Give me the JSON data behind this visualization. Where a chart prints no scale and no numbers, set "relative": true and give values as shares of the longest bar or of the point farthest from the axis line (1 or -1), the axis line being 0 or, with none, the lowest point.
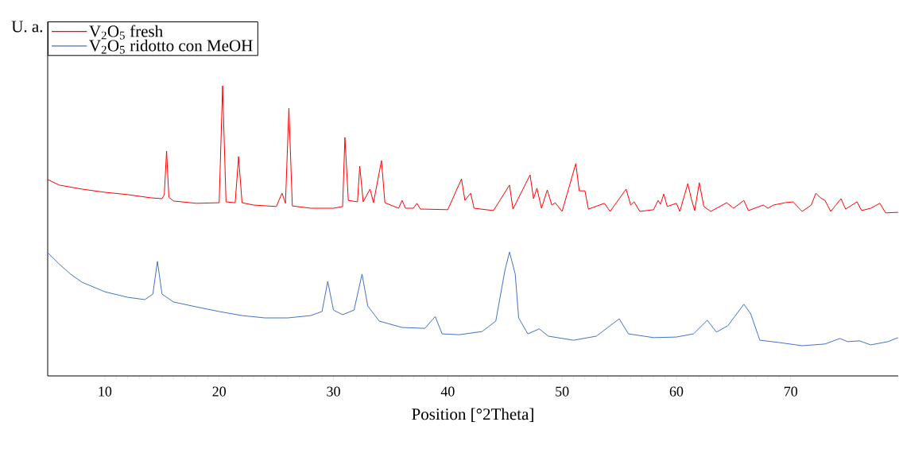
{
  "chart_data": {
    "type": "line",
    "xlabel": "Position [°2Theta]",
    "ylabel": "U. a.",
    "relative": true,
    "legend": "top left",
    "xlim": [
      5,
      79.4
    ],
    "xticks": [
      10,
      20,
      30,
      40,
      50,
      60,
      70
    ],
    "series": [
      {
        "name": "V$_{2}$O$_{5}$ fresh",
        "color": "#ff0000",
        "x": [
          5,
          6,
          8,
          10,
          12,
          14,
          15.0,
          15.2,
          15.4,
          15.6,
          16,
          18,
          20.0,
          20.3,
          20.6,
          21.4,
          21.7,
          22.0,
          23,
          25,
          25.5,
          25.8,
          26.1,
          26.4,
          28,
          30,
          30.8,
          31.0,
          31.3,
          32.1,
          32.3,
          32.6,
          33.2,
          33.5,
          34.2,
          34.5,
          35.7,
          36.0,
          36.3,
          37.0,
          37.3,
          37.6,
          38,
          40,
          41.2,
          41.5,
          42.0,
          42.3,
          44,
          45.4,
          45.7,
          47.2,
          47.5,
          47.8,
          48.2,
          48.7,
          49.1,
          49.4,
          50,
          51.2,
          51.5,
          52.0,
          52.3,
          53.7,
          54.2,
          55.6,
          56.0,
          56.3,
          56.8,
          58,
          58.4,
          58.6,
          58.9,
          59.2,
          60.0,
          60.3,
          61.0,
          61.3,
          61.6,
          62.0,
          62.4,
          63,
          64.4,
          65,
          65.9,
          66.3,
          67.6,
          68,
          68.5,
          69.5,
          70.2,
          71,
          71.8,
          72.2,
          72.6,
          73.0,
          73.5,
          74.4,
          74.8,
          75.8,
          76.2,
          77,
          77.8,
          78.3,
          79.4
        ],
        "values": [
          0.677,
          0.658,
          0.644,
          0.633,
          0.625,
          0.614,
          0.611,
          0.625,
          0.775,
          0.616,
          0.603,
          0.595,
          0.597,
          1,
          0.6,
          0.597,
          0.756,
          0.597,
          0.589,
          0.584,
          0.63,
          0.595,
          0.923,
          0.586,
          0.578,
          0.578,
          0.584,
          0.822,
          0.605,
          0.6,
          0.723,
          0.6,
          0.644,
          0.597,
          0.742,
          0.597,
          0.578,
          0.605,
          0.578,
          0.578,
          0.595,
          0.575,
          0.575,
          0.573,
          0.679,
          0.605,
          0.63,
          0.578,
          0.57,
          0.658,
          0.575,
          0.693,
          0.611,
          0.647,
          0.578,
          0.641,
          0.589,
          0.597,
          0.567,
          0.732,
          0.638,
          0.638,
          0.575,
          0.595,
          0.567,
          0.644,
          0.589,
          0.6,
          0.567,
          0.573,
          0.605,
          0.592,
          0.627,
          0.584,
          0.595,
          0.567,
          0.663,
          0.611,
          0.57,
          0.666,
          0.584,
          0.567,
          0.597,
          0.578,
          0.605,
          0.57,
          0.589,
          0.578,
          0.589,
          0.597,
          0.6,
          0.567,
          0.589,
          0.63,
          0.614,
          0.605,
          0.567,
          0.611,
          0.575,
          0.6,
          0.57,
          0.578,
          0.595,
          0.562,
          0.564
        ]
      },
      {
        "name": "V$_{2}$O$_{5}$ ridotto con MeOH",
        "color": "#4472c4",
        "x": [
          5,
          6,
          7,
          8,
          10,
          12,
          13.5,
          14.2,
          14.6,
          15.0,
          16,
          18,
          20,
          22,
          24,
          26,
          28,
          29.0,
          29.5,
          30.0,
          30.8,
          31.8,
          32.5,
          33.0,
          34,
          36,
          38,
          38.9,
          39.5,
          41,
          43,
          44.2,
          45.0,
          45.4,
          45.9,
          46.2,
          47,
          48,
          48.8,
          51,
          53,
          55.0,
          55.8,
          58,
          60,
          61.5,
          62.7,
          63.5,
          64.5,
          65.9,
          66.5,
          67.3,
          69,
          71,
          73,
          74.3,
          75,
          76,
          77,
          78.5,
          79.4
        ],
        "values": [
          0.425,
          0.386,
          0.351,
          0.323,
          0.29,
          0.271,
          0.263,
          0.282,
          0.395,
          0.282,
          0.255,
          0.238,
          0.222,
          0.208,
          0.2,
          0.2,
          0.208,
          0.222,
          0.326,
          0.227,
          0.211,
          0.227,
          0.351,
          0.241,
          0.189,
          0.167,
          0.164,
          0.205,
          0.145,
          0.142,
          0.153,
          0.189,
          0.364,
          0.427,
          0.351,
          0.2,
          0.145,
          0.162,
          0.137,
          0.123,
          0.137,
          0.197,
          0.145,
          0.132,
          0.134,
          0.145,
          0.192,
          0.151,
          0.173,
          0.247,
          0.214,
          0.123,
          0.115,
          0.104,
          0.11,
          0.129,
          0.118,
          0.121,
          0.107,
          0.118,
          0.132
        ]
      }
    ]
  }
}
